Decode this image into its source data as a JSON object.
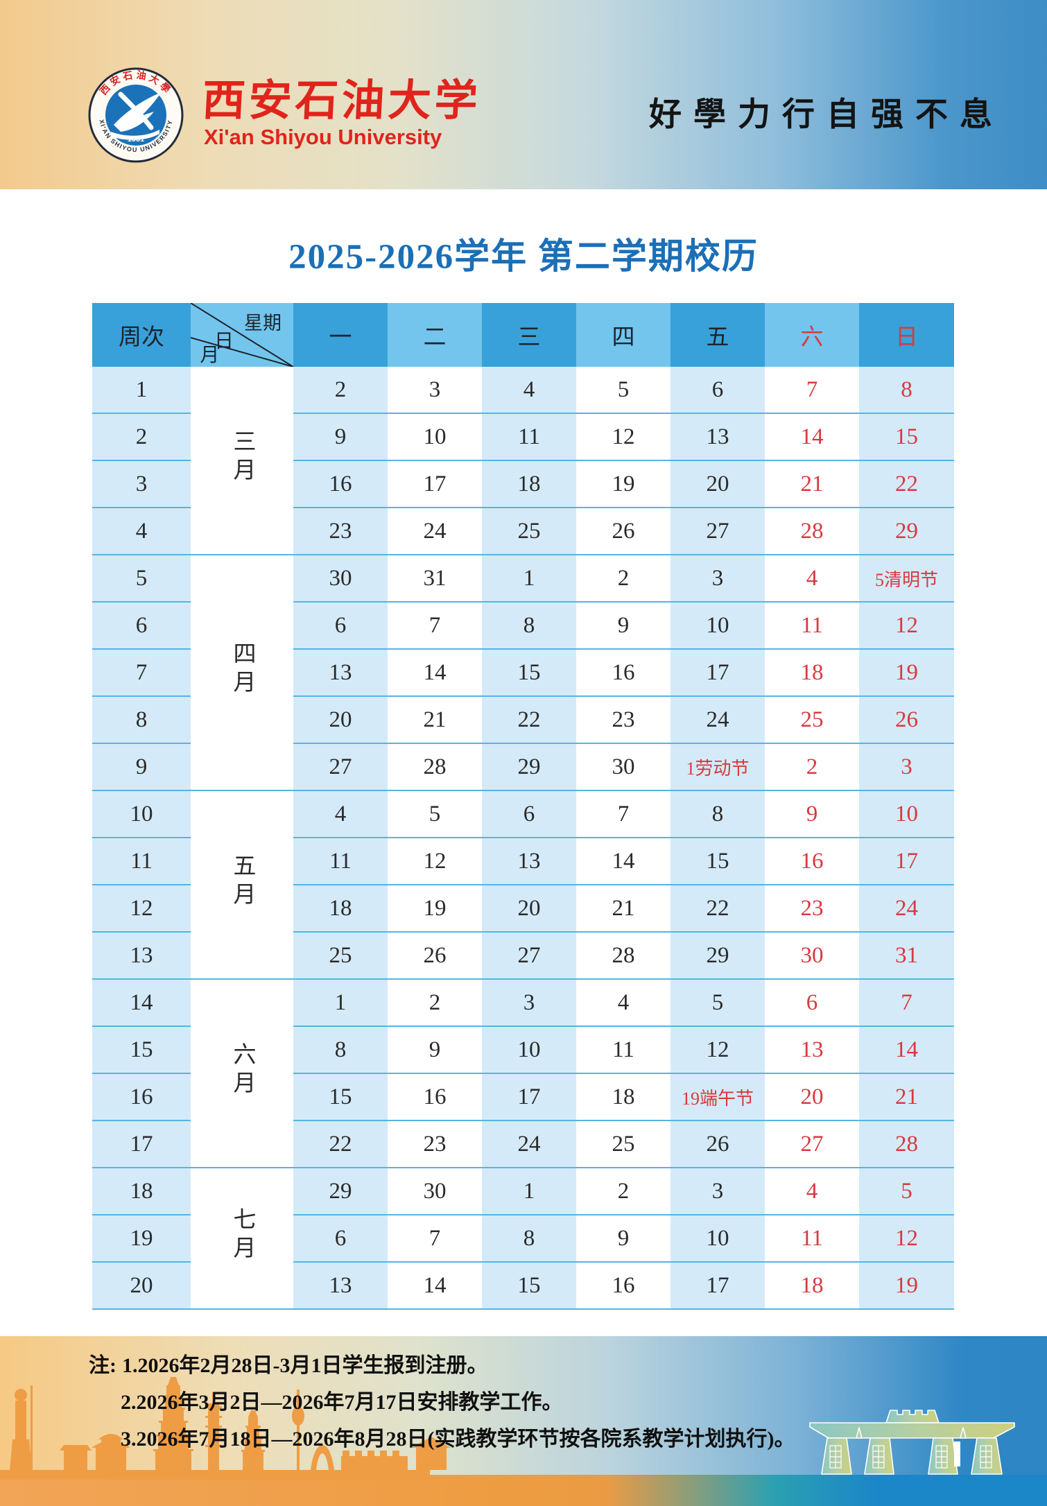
{
  "header": {
    "university_cn": "西安石油大学",
    "university_en": "Xi'an Shiyou University",
    "motto": "好學力行自强不息",
    "seal": {
      "arc_cn": "西安石油大學",
      "arc_en": "XI'AN SHIYOU UNIVERSITY",
      "year": "1951"
    }
  },
  "title": "2025-2026学年 第二学期校历",
  "calendar": {
    "week_col_header": "周次",
    "corner": {
      "top": "星期",
      "mid": "日",
      "bottom": "月"
    },
    "day_headers": [
      "一",
      "二",
      "三",
      "四",
      "五",
      "六",
      "日"
    ],
    "months": [
      {
        "name": "三月",
        "from_week": 1,
        "rows": 4
      },
      {
        "name": "四月",
        "from_week": 5,
        "rows": 5
      },
      {
        "name": "五月",
        "from_week": 10,
        "rows": 4
      },
      {
        "name": "六月",
        "from_week": 14,
        "rows": 4
      },
      {
        "name": "七月",
        "from_week": 18,
        "rows": 3
      }
    ],
    "weeks": [
      {
        "week": "1",
        "days": [
          "2",
          "3",
          "4",
          "5",
          "6",
          "7",
          "8"
        ]
      },
      {
        "week": "2",
        "days": [
          "9",
          "10",
          "11",
          "12",
          "13",
          "14",
          "15"
        ]
      },
      {
        "week": "3",
        "days": [
          "16",
          "17",
          "18",
          "19",
          "20",
          "21",
          "22"
        ]
      },
      {
        "week": "4",
        "days": [
          "23",
          "24",
          "25",
          "26",
          "27",
          "28",
          "29"
        ]
      },
      {
        "week": "5",
        "days": [
          "30",
          "31",
          "1",
          "2",
          "3",
          "4",
          "5清明节"
        ]
      },
      {
        "week": "6",
        "days": [
          "6",
          "7",
          "8",
          "9",
          "10",
          "11",
          "12"
        ]
      },
      {
        "week": "7",
        "days": [
          "13",
          "14",
          "15",
          "16",
          "17",
          "18",
          "19"
        ]
      },
      {
        "week": "8",
        "days": [
          "20",
          "21",
          "22",
          "23",
          "24",
          "25",
          "26"
        ]
      },
      {
        "week": "9",
        "days": [
          "27",
          "28",
          "29",
          "30",
          "1劳动节",
          "2",
          "3"
        ]
      },
      {
        "week": "10",
        "days": [
          "4",
          "5",
          "6",
          "7",
          "8",
          "9",
          "10"
        ]
      },
      {
        "week": "11",
        "days": [
          "11",
          "12",
          "13",
          "14",
          "15",
          "16",
          "17"
        ]
      },
      {
        "week": "12",
        "days": [
          "18",
          "19",
          "20",
          "21",
          "22",
          "23",
          "24"
        ]
      },
      {
        "week": "13",
        "days": [
          "25",
          "26",
          "27",
          "28",
          "29",
          "30",
          "31"
        ]
      },
      {
        "week": "14",
        "days": [
          "1",
          "2",
          "3",
          "4",
          "5",
          "6",
          "7"
        ]
      },
      {
        "week": "15",
        "days": [
          "8",
          "9",
          "10",
          "11",
          "12",
          "13",
          "14"
        ]
      },
      {
        "week": "16",
        "days": [
          "15",
          "16",
          "17",
          "18",
          "19端午节",
          "20",
          "21"
        ]
      },
      {
        "week": "17",
        "days": [
          "22",
          "23",
          "24",
          "25",
          "26",
          "27",
          "28"
        ]
      },
      {
        "week": "18",
        "days": [
          "29",
          "30",
          "1",
          "2",
          "3",
          "4",
          "5"
        ]
      },
      {
        "week": "19",
        "days": [
          "6",
          "7",
          "8",
          "9",
          "10",
          "11",
          "12"
        ]
      },
      {
        "week": "20",
        "days": [
          "13",
          "14",
          "15",
          "16",
          "17",
          "18",
          "19"
        ]
      }
    ]
  },
  "notes": {
    "prefix": "注:",
    "items": [
      "1.2026年2月28日-3月1日学生报到注册。",
      "2.2026年3月2日—2026年7月17日安排教学工作。",
      "3.2026年7月18日—2026年8月28日(实践教学环节按各院系教学计划执行)。"
    ]
  },
  "colors": {
    "title_blue": "#1b6fb6",
    "header_dark_blue": "#38a1da",
    "header_light_blue": "#73c5ee",
    "cell_light_blue": "#d4eaf8",
    "row_line_blue": "#55b5e2",
    "weekend_red": "#d8393f",
    "brand_red": "#e0241b"
  }
}
